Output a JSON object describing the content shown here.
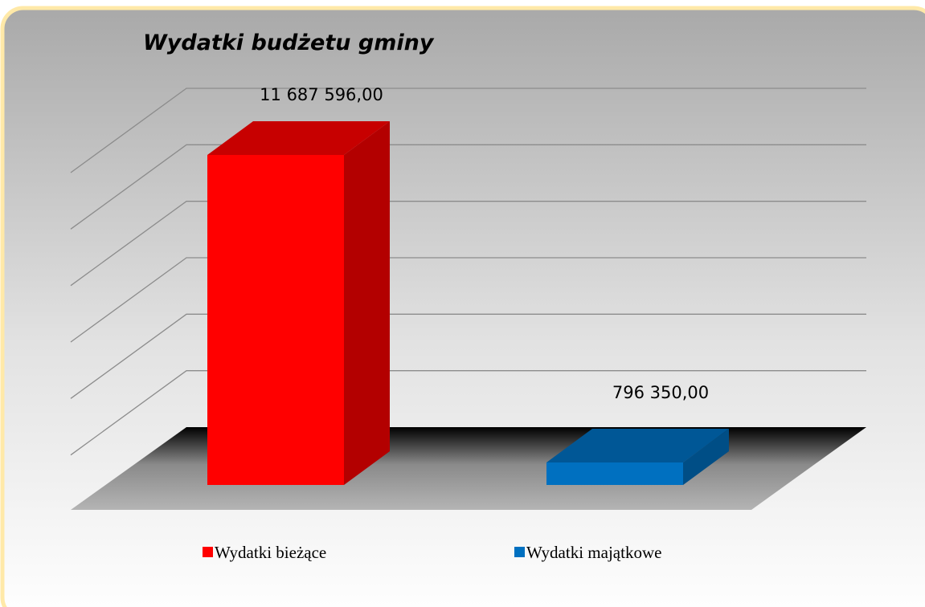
{
  "chart_data": {
    "type": "bar3d",
    "title": "Wydatki budżetu gminy",
    "categories": [
      "Wydatki bieżące",
      "Wydatki majątkowe"
    ],
    "values": [
      11687596,
      796350
    ],
    "value_labels": [
      "11 687 596,00",
      "796 350,00"
    ],
    "colors": [
      "#ff0000",
      "#0070c0"
    ],
    "ylim": [
      0,
      12000000
    ],
    "yticks": [
      0,
      2000000,
      4000000,
      6000000,
      8000000,
      10000000,
      12000000
    ],
    "grid": true,
    "legend": "bottom"
  }
}
